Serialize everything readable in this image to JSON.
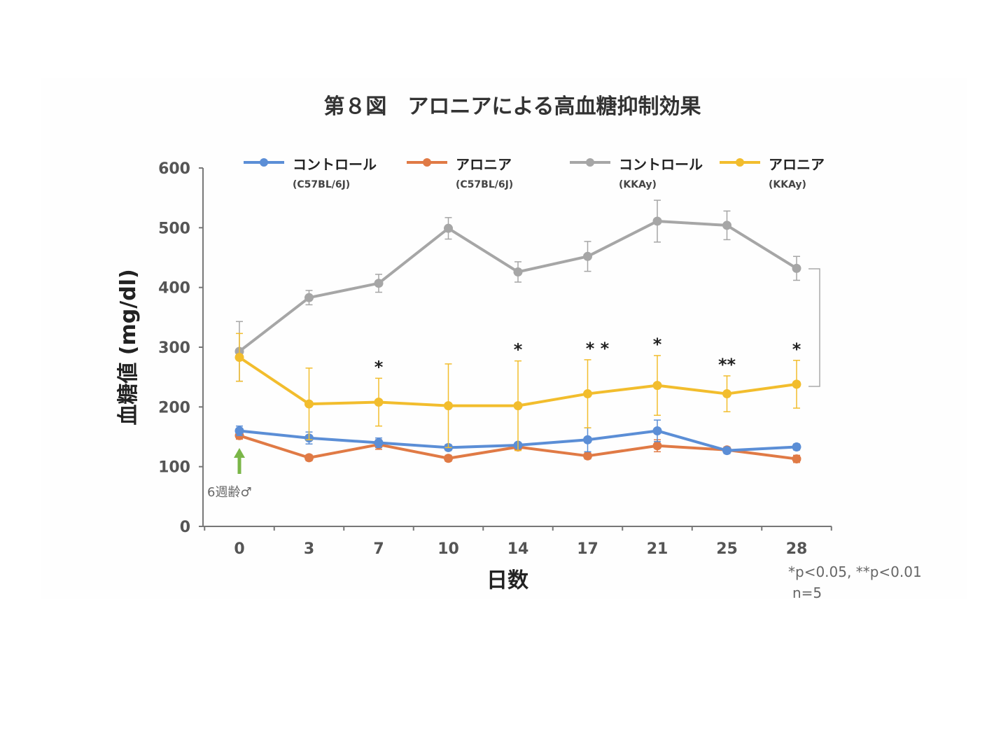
{
  "chart_data": {
    "type": "line",
    "title": "第８図　アロニアによる高血糖抑制効果",
    "xlabel": "日数",
    "ylabel": "血糖値 (mg/dl)",
    "categories": [
      "0",
      "3",
      "7",
      "10",
      "14",
      "17",
      "21",
      "25",
      "28"
    ],
    "yticks": [
      "0",
      "100",
      "200",
      "300",
      "400",
      "500",
      "600"
    ],
    "ylim": [
      0,
      600
    ],
    "grid": false,
    "legend_position": "top",
    "series": [
      {
        "name": "コントロール",
        "subname": "(C57BL/6J)",
        "color": "#5b8ed6",
        "values": [
          160,
          148,
          140,
          132,
          136,
          145,
          160,
          127,
          133
        ],
        "errors": [
          8,
          10,
          8,
          5,
          4,
          20,
          18,
          5,
          5
        ]
      },
      {
        "name": "アロニア",
        "subname": "(C57BL/6J)",
        "color": "#e07a45",
        "values": [
          152,
          115,
          137,
          114,
          133,
          118,
          135,
          128,
          113
        ],
        "errors": [
          6,
          5,
          8,
          5,
          5,
          5,
          10,
          5,
          6
        ]
      },
      {
        "name": "コントロール",
        "subname": "(KKAy)",
        "color": "#a6a6a6",
        "values": [
          293,
          383,
          407,
          499,
          426,
          452,
          511,
          504,
          432
        ],
        "errors": [
          50,
          12,
          15,
          18,
          17,
          25,
          35,
          24,
          20
        ]
      },
      {
        "name": "アロニア",
        "subname": "(KKAy)",
        "color": "#f2bd2d",
        "values": [
          283,
          205,
          208,
          202,
          202,
          222,
          236,
          222,
          238
        ],
        "errors": [
          40,
          60,
          40,
          70,
          75,
          57,
          50,
          30,
          40
        ]
      }
    ],
    "significance": [
      {
        "x": "7",
        "label": "*"
      },
      {
        "x": "14",
        "label": "*"
      },
      {
        "x": "17",
        "label": "* *"
      },
      {
        "x": "21",
        "label": "*"
      },
      {
        "x": "25",
        "label": "**"
      },
      {
        "x": "28",
        "label": "*"
      }
    ],
    "start_marker": {
      "x": "0",
      "label": "6週齢♂",
      "color": "#7ab648"
    },
    "notes": [
      "*p<0.05, **p<0.01",
      "n=5"
    ]
  }
}
